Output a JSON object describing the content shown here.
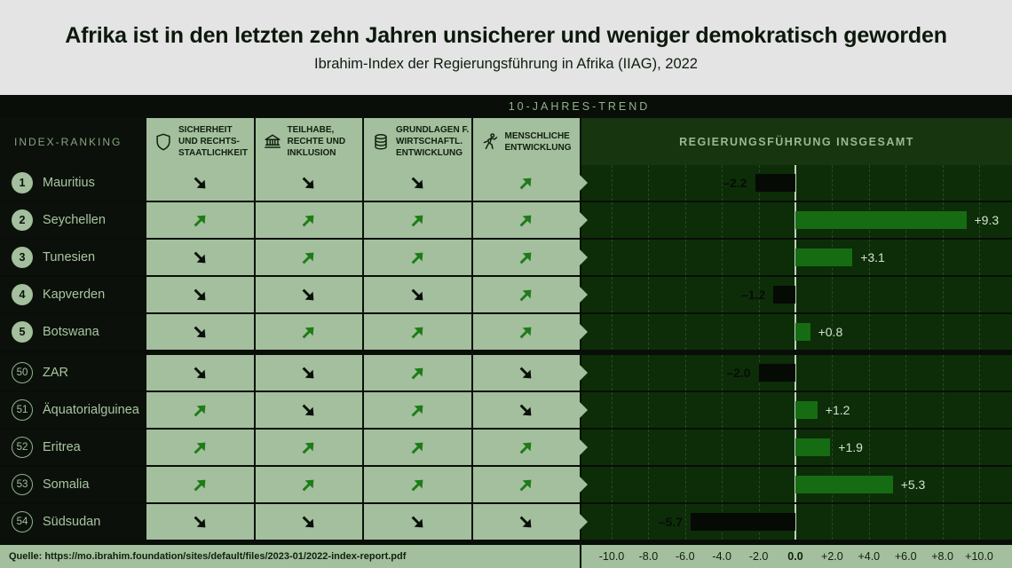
{
  "header": {
    "title": "Afrika ist in den letzten zehn Jahren unsicherer und weniger demokratisch geworden",
    "subtitle": "Ibrahim-Index der Regierungsführung in Afrika (IIAG), 2022"
  },
  "table": {
    "index_ranking_label": "INDEX-RANKING",
    "trend_band_label": "10-JAHRES-TREND",
    "overall_label": "REGIERUNGSFÜHRUNG INSGESAMT",
    "categories": [
      {
        "icon": "shield-icon",
        "label": "SICHERHEIT\nUND RECHTS-\nSTAATLICHKEIT"
      },
      {
        "icon": "bank-icon",
        "label": "TEILHABE,\nRECHTE UND\nINKLUSION"
      },
      {
        "icon": "database-icon",
        "label": "GRUNDLAGEN F.\nWIRTSCHAFTL.\nENTWICKLUNG"
      },
      {
        "icon": "runner-icon",
        "label": "MENSCHLICHE\nENTWICKLUNG"
      }
    ]
  },
  "rows": [
    {
      "rank": "1",
      "country": "Mauritius",
      "badge": "filled",
      "trends": [
        "down",
        "down",
        "down",
        "up"
      ],
      "value": -2.2,
      "value_label": "–2.2"
    },
    {
      "rank": "2",
      "country": "Seychellen",
      "badge": "filled",
      "trends": [
        "up",
        "up",
        "up",
        "up"
      ],
      "value": 9.3,
      "value_label": "+9.3"
    },
    {
      "rank": "3",
      "country": "Tunesien",
      "badge": "filled",
      "trends": [
        "down",
        "up",
        "up",
        "up"
      ],
      "value": 3.1,
      "value_label": "+3.1"
    },
    {
      "rank": "4",
      "country": "Kapverden",
      "badge": "filled",
      "trends": [
        "down",
        "down",
        "down",
        "up"
      ],
      "value": -1.2,
      "value_label": "–1.2"
    },
    {
      "rank": "5",
      "country": "Botswana",
      "badge": "filled",
      "trends": [
        "down",
        "up",
        "up",
        "up"
      ],
      "value": 0.8,
      "value_label": "+0.8"
    },
    {
      "rank": "50",
      "country": "ZAR",
      "badge": "ring",
      "trends": [
        "down",
        "down",
        "up",
        "down"
      ],
      "value": -2.0,
      "value_label": "–2.0"
    },
    {
      "rank": "51",
      "country": "Äquatorialguinea",
      "badge": "ring",
      "trends": [
        "up",
        "down",
        "up",
        "down"
      ],
      "value": 1.2,
      "value_label": "+1.2"
    },
    {
      "rank": "52",
      "country": "Eritrea",
      "badge": "ring",
      "trends": [
        "up",
        "up",
        "up",
        "up"
      ],
      "value": 1.9,
      "value_label": "+1.9"
    },
    {
      "rank": "53",
      "country": "Somalia",
      "badge": "ring",
      "trends": [
        "up",
        "up",
        "up",
        "up"
      ],
      "value": 5.3,
      "value_label": "+5.3"
    },
    {
      "rank": "54",
      "country": "Südsudan",
      "badge": "ring",
      "trends": [
        "down",
        "down",
        "down",
        "down"
      ],
      "value": -5.7,
      "value_label": "–5.7"
    }
  ],
  "axis": {
    "ticks": [
      {
        "value": -10,
        "label": "-10.0"
      },
      {
        "value": -8,
        "label": "-8.0"
      },
      {
        "value": -6,
        "label": "-6.0"
      },
      {
        "value": -4,
        "label": "-4.0"
      },
      {
        "value": -2,
        "label": "-2.0"
      },
      {
        "value": 0,
        "label": "0.0"
      },
      {
        "value": 2,
        "label": "+2.0"
      },
      {
        "value": 4,
        "label": "+4.0"
      },
      {
        "value": 6,
        "label": "+6.0"
      },
      {
        "value": 8,
        "label": "+8.0"
      },
      {
        "value": 10,
        "label": "+10.0"
      }
    ]
  },
  "source": "Quelle: https://mo.ibrahim.foundation/sites/default/files/2023-01/2022-index-report.pdf",
  "colors": {
    "header_bg": "#e3e4e3",
    "cell_green": "#a3bf9d",
    "chart_bg": "#0c2d08",
    "band_green": "#17350f",
    "positive_bar": "#166c12",
    "negative_bar": "#060a05",
    "up_arrow": "#1e7c18",
    "down_arrow": "#0b100a"
  },
  "chart_data": {
    "type": "bar",
    "orientation": "horizontal",
    "title": "Afrika ist in den letzten zehn Jahren unsicherer und weniger demokratisch geworden",
    "subtitle": "Ibrahim-Index der Regierungsführung in Afrika (IIAG), 2022",
    "series_label": "REGIERUNGSFÜHRUNG INSGESAMT",
    "categories": [
      "Mauritius",
      "Seychellen",
      "Tunesien",
      "Kapverden",
      "Botswana",
      "ZAR",
      "Äquatorialguinea",
      "Eritrea",
      "Somalia",
      "Südsudan"
    ],
    "ranks": [
      1,
      2,
      3,
      4,
      5,
      50,
      51,
      52,
      53,
      54
    ],
    "values": [
      -2.2,
      9.3,
      3.1,
      -1.2,
      0.8,
      -2.0,
      1.2,
      1.9,
      5.3,
      -5.7
    ],
    "xlim": [
      -10,
      10
    ],
    "tick_step": 2,
    "grid": true,
    "trend_columns": [
      "SICHERHEIT UND RECHTSSTAATLICHKEIT",
      "TEILHABE, RECHTE UND INKLUSION",
      "GRUNDLAGEN F. WIRTSCHAFTL. ENTWICKLUNG",
      "MENSCHLICHE ENTWICKLUNG"
    ],
    "trends": [
      [
        "down",
        "down",
        "down",
        "up"
      ],
      [
        "up",
        "up",
        "up",
        "up"
      ],
      [
        "down",
        "up",
        "up",
        "up"
      ],
      [
        "down",
        "down",
        "down",
        "up"
      ],
      [
        "down",
        "up",
        "up",
        "up"
      ],
      [
        "down",
        "down",
        "up",
        "down"
      ],
      [
        "up",
        "down",
        "up",
        "down"
      ],
      [
        "up",
        "up",
        "up",
        "up"
      ],
      [
        "up",
        "up",
        "up",
        "up"
      ],
      [
        "down",
        "down",
        "down",
        "down"
      ]
    ]
  }
}
